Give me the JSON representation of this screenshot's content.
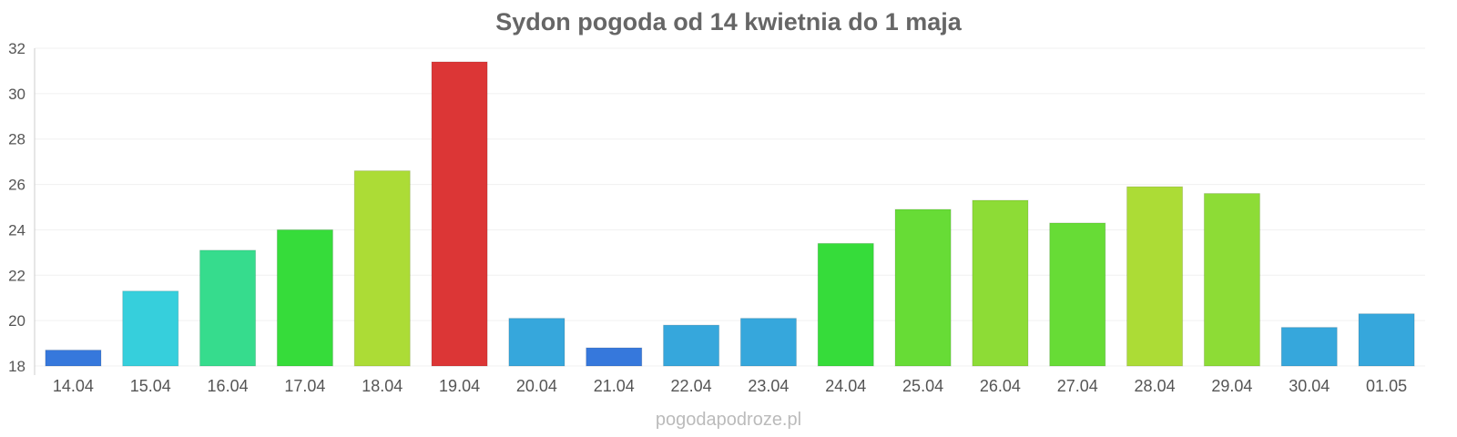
{
  "chart_data": {
    "type": "bar",
    "title": "Sydon pogoda od 14 kwietnia do 1 maja",
    "xlabel": "",
    "ylabel": "",
    "ylim": [
      18,
      32
    ],
    "yticks": [
      "18",
      "20",
      "22",
      "24",
      "26",
      "28",
      "30",
      "32"
    ],
    "grid": true,
    "categories": [
      "14.04",
      "15.04",
      "16.04",
      "17.04",
      "18.04",
      "19.04",
      "20.04",
      "21.04",
      "22.04",
      "23.04",
      "24.04",
      "25.04",
      "26.04",
      "27.04",
      "28.04",
      "29.04",
      "30.04",
      "01.05"
    ],
    "values": [
      18.7,
      21.3,
      23.1,
      24.0,
      26.6,
      31.4,
      20.1,
      18.8,
      19.8,
      20.1,
      23.4,
      24.9,
      25.3,
      24.3,
      25.9,
      25.6,
      19.7,
      20.3
    ],
    "colors": [
      "#3678dc",
      "#36cfdc",
      "#36dc8d",
      "#36dc3a",
      "#acdc36",
      "#dc3636",
      "#36a7dc",
      "#3678dc",
      "#36a7dc",
      "#36a7dc",
      "#36dc3a",
      "#67dc36",
      "#8ddc36",
      "#67dc36",
      "#acdc36",
      "#8ddc36",
      "#36a7dc",
      "#36a7dc"
    ]
  },
  "watermark": "pogodapodroze.pl"
}
